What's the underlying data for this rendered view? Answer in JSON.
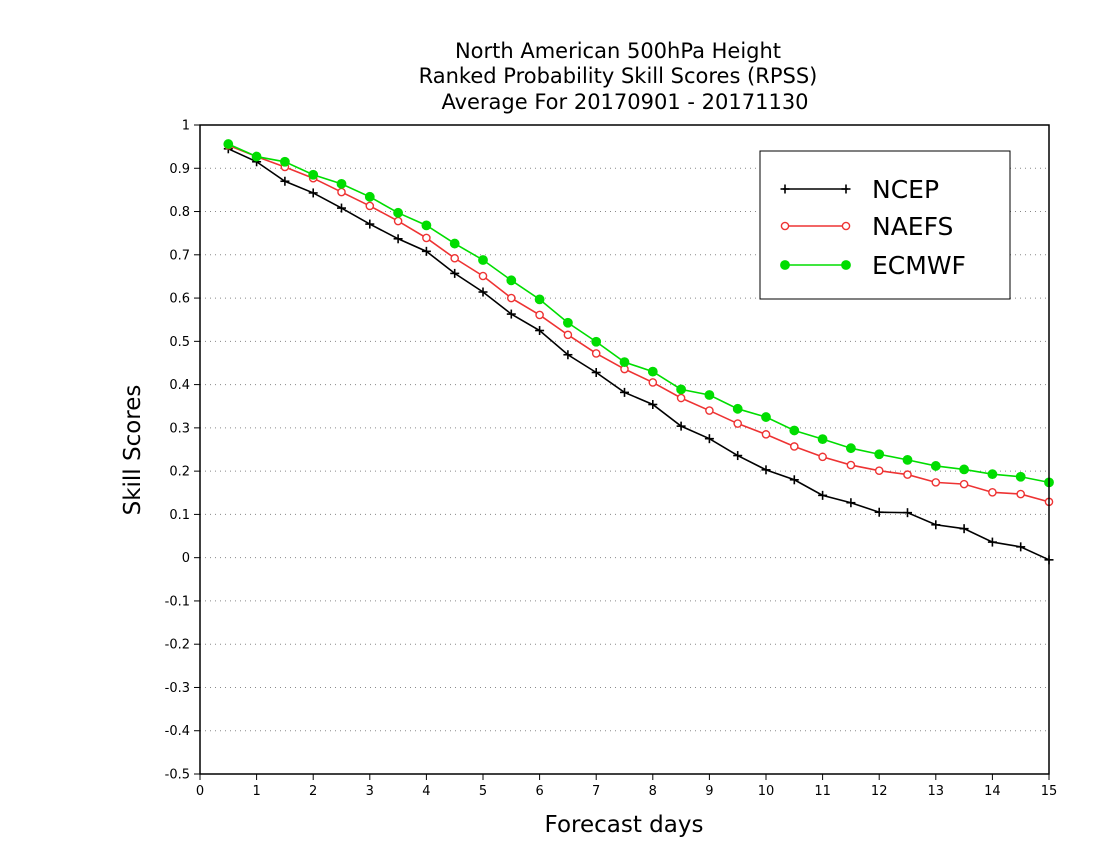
{
  "chart_data": {
    "type": "line",
    "title": [
      "North American 500hPa Height",
      "Ranked Probability Skill Scores (RPSS)",
      "Average For 20170901 - 20171130"
    ],
    "xlabel": "Forecast days",
    "ylabel": "Skill Scores",
    "xlim": [
      0,
      15
    ],
    "ylim": [
      -0.5,
      1
    ],
    "xticks": [
      "0",
      "1",
      "2",
      "3",
      "4",
      "5",
      "6",
      "7",
      "8",
      "9",
      "10",
      "11",
      "12",
      "13",
      "14",
      "15"
    ],
    "yticks": [
      "-0.5",
      "-0.4",
      "-0.3",
      "-0.2",
      "-0.1",
      "0",
      "0.1",
      "0.2",
      "0.3",
      "0.4",
      "0.5",
      "0.6",
      "0.7",
      "0.8",
      "0.9",
      "1"
    ],
    "grid": "horizontal-dotted",
    "legend_position": "top-right",
    "x": [
      0.5,
      1,
      1.5,
      2,
      2.5,
      3,
      3.5,
      4,
      4.5,
      5,
      5.5,
      6,
      6.5,
      7,
      7.5,
      8,
      8.5,
      9,
      9.5,
      10,
      10.5,
      11,
      11.5,
      12,
      12.5,
      13,
      13.5,
      14,
      14.5,
      15
    ],
    "series": [
      {
        "name": "NCEP",
        "color": "#000000",
        "marker": "plus",
        "values": [
          0.945,
          0.915,
          0.87,
          0.843,
          0.808,
          0.771,
          0.737,
          0.708,
          0.657,
          0.614,
          0.563,
          0.525,
          0.469,
          0.428,
          0.382,
          0.354,
          0.304,
          0.275,
          0.236,
          0.203,
          0.18,
          0.144,
          0.127,
          0.105,
          0.104,
          0.076,
          0.067,
          0.036,
          0.025,
          -0.005
        ]
      },
      {
        "name": "NAEFS",
        "color": "#ee3333",
        "marker": "open-circle",
        "values": [
          0.953,
          0.927,
          0.903,
          0.877,
          0.845,
          0.813,
          0.778,
          0.739,
          0.692,
          0.651,
          0.6,
          0.561,
          0.515,
          0.472,
          0.436,
          0.405,
          0.369,
          0.34,
          0.31,
          0.285,
          0.257,
          0.233,
          0.214,
          0.201,
          0.192,
          0.174,
          0.17,
          0.151,
          0.147,
          0.129
        ]
      },
      {
        "name": "ECMWF",
        "color": "#00dd00",
        "marker": "filled-circle",
        "values": [
          0.956,
          0.927,
          0.915,
          0.885,
          0.864,
          0.834,
          0.797,
          0.768,
          0.726,
          0.688,
          0.641,
          0.597,
          0.543,
          0.499,
          0.452,
          0.43,
          0.389,
          0.376,
          0.344,
          0.325,
          0.294,
          0.274,
          0.253,
          0.239,
          0.226,
          0.212,
          0.204,
          0.193,
          0.187,
          0.174
        ]
      }
    ]
  }
}
